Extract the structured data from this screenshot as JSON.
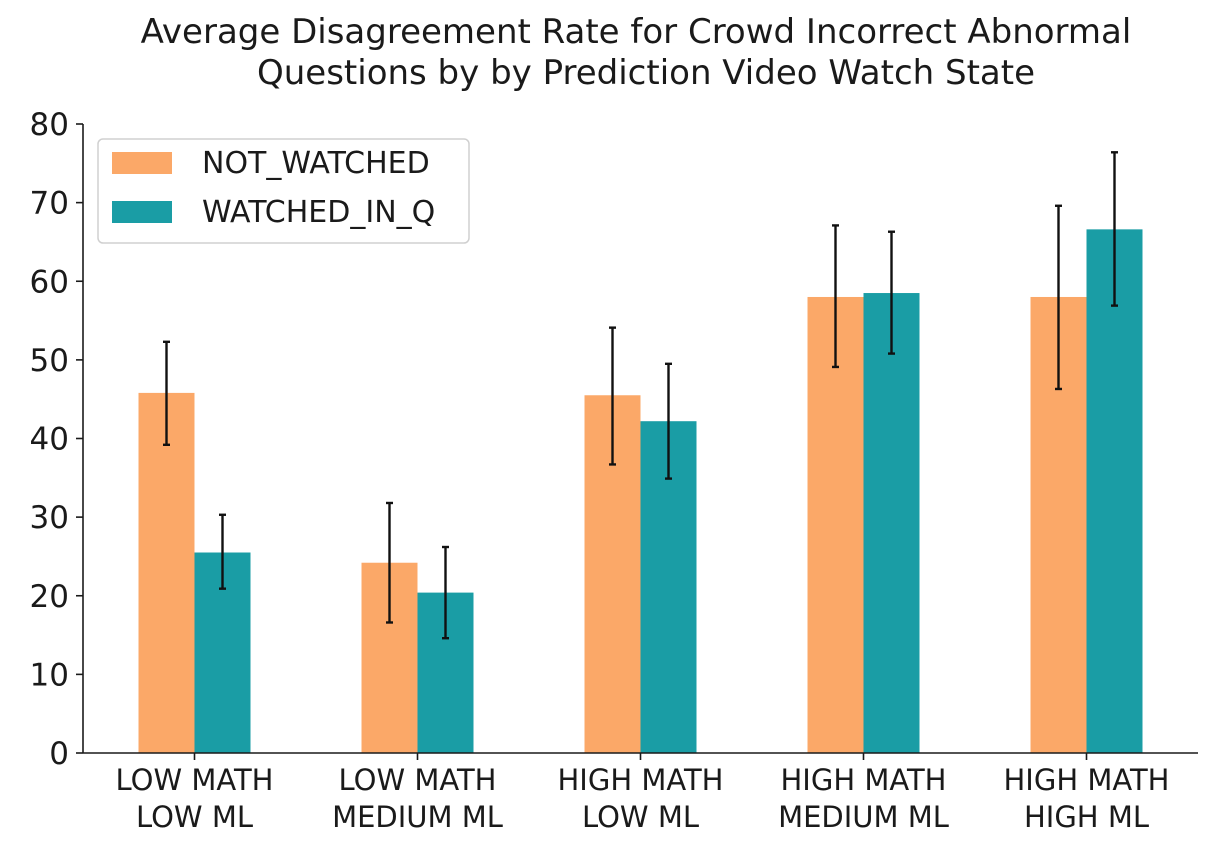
{
  "chart_data": {
    "type": "bar",
    "title": [
      "Average Disagreement Rate for Crowd Incorrect Abnormal",
      "Questions by by Prediction Video Watch State"
    ],
    "categories": [
      [
        "LOW MATH",
        "LOW ML"
      ],
      [
        "LOW MATH",
        "MEDIUM ML"
      ],
      [
        "HIGH MATH",
        "LOW ML"
      ],
      [
        "HIGH MATH",
        "MEDIUM  ML"
      ],
      [
        "HIGH MATH",
        "HIGH ML"
      ]
    ],
    "series": [
      {
        "name": "NOT_WATCHED",
        "color": "#fba868",
        "values": [
          45.8,
          24.2,
          45.5,
          58.0,
          58.0
        ],
        "error_low": [
          39.2,
          16.6,
          36.7,
          49.1,
          46.3
        ],
        "error_high": [
          52.3,
          31.8,
          54.1,
          67.1,
          69.6
        ]
      },
      {
        "name": "WATCHED_IN_Q",
        "color": "#1a9da5",
        "values": [
          25.5,
          20.4,
          42.2,
          58.5,
          66.6
        ],
        "error_low": [
          20.9,
          14.6,
          34.9,
          50.8,
          56.9
        ],
        "error_high": [
          30.3,
          26.2,
          49.5,
          66.3,
          76.4
        ]
      }
    ],
    "yticks": [
      "0",
      "10",
      "20",
      "30",
      "40",
      "50",
      "60",
      "70",
      "80"
    ],
    "ylim": [
      0,
      80
    ],
    "xlabel": "",
    "ylabel": "",
    "legend_position": "upper-left",
    "error_color": "#111111",
    "axis_color": "#1a1a1a"
  }
}
